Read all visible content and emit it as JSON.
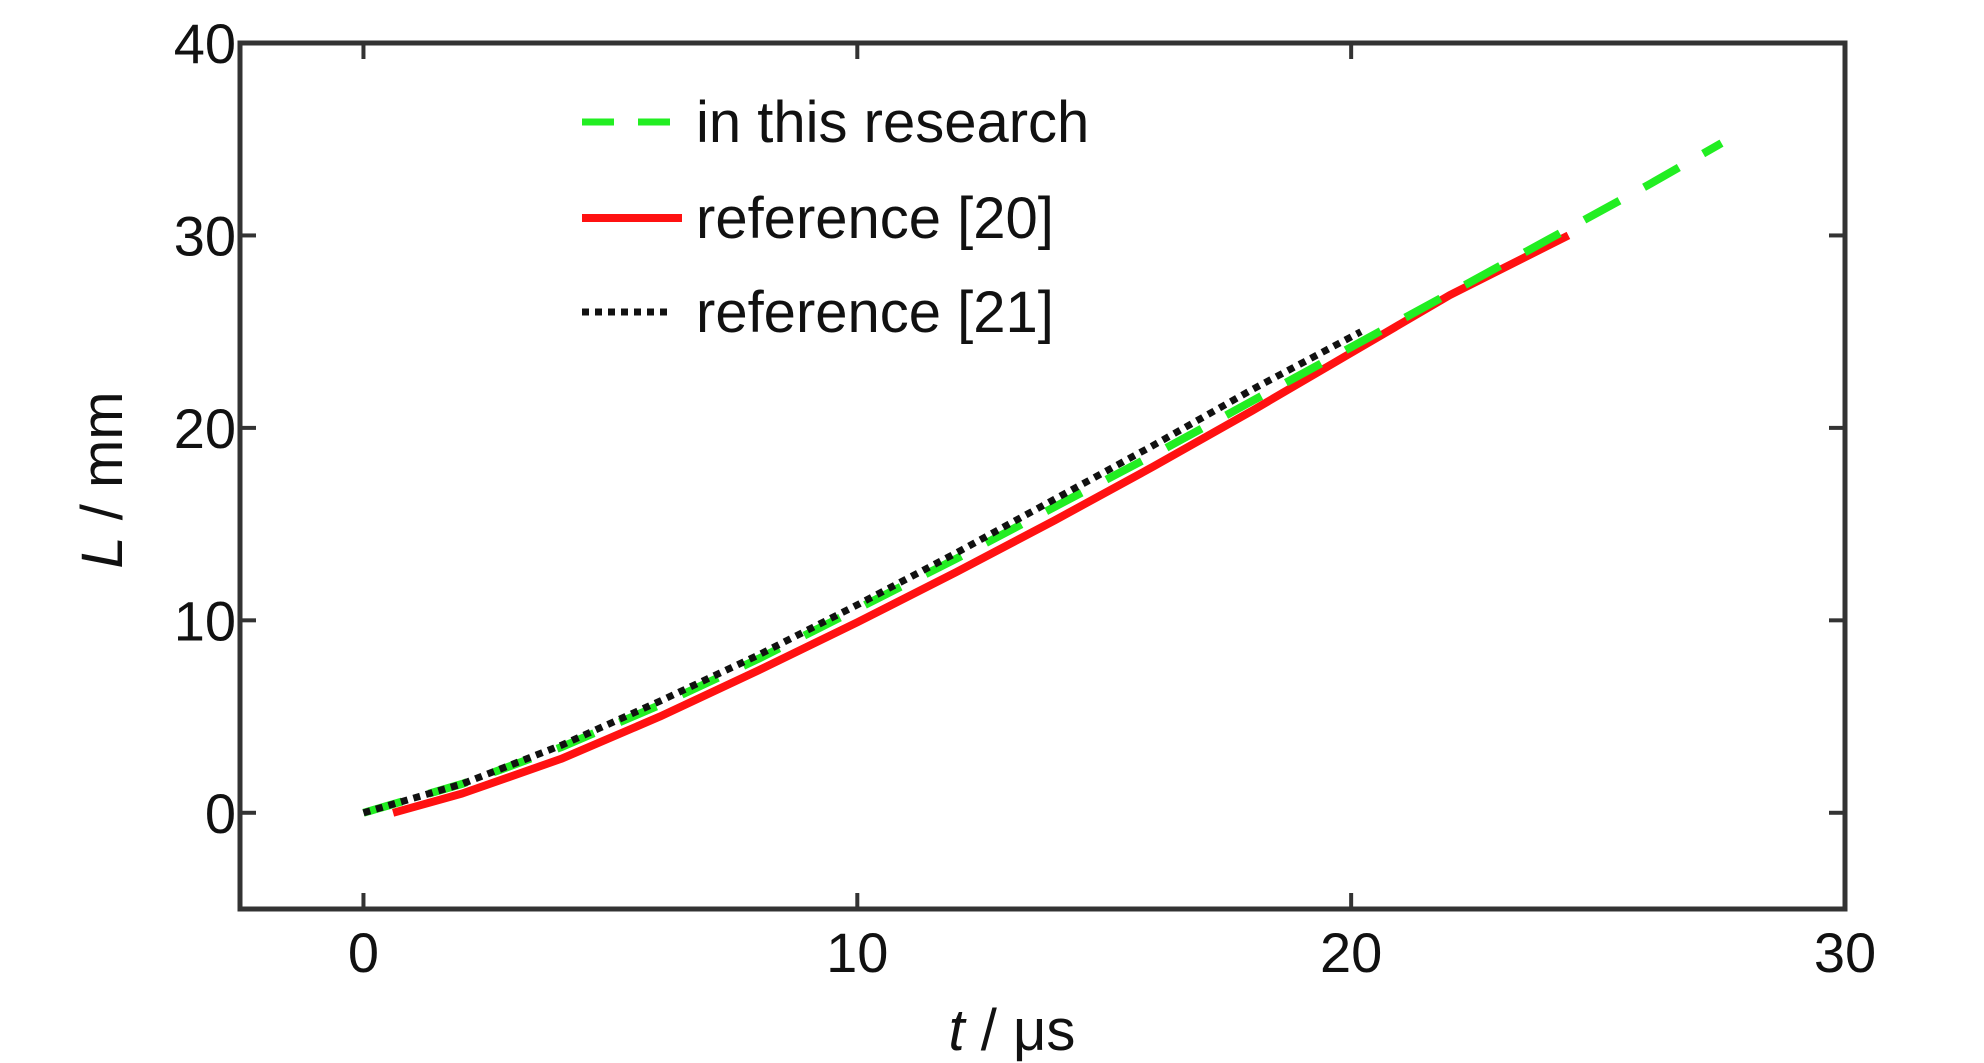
{
  "chart_data": {
    "type": "line",
    "xlabel": {
      "var": "t",
      "unit": " / μs"
    },
    "ylabel": {
      "var": "L",
      "unit": " / mm"
    },
    "xlim": [
      -2.5,
      30
    ],
    "ylim": [
      -5,
      40
    ],
    "xticks": [
      0,
      10,
      20,
      30
    ],
    "yticks": [
      0,
      10,
      20,
      30,
      40
    ],
    "grid": false,
    "legend_position": "top-left",
    "series": [
      {
        "name": "in this research",
        "color": "#22ee22",
        "style": "dashed",
        "x": [
          0,
          2,
          4,
          6,
          8,
          10,
          12,
          14,
          16,
          18,
          20,
          22,
          24,
          26,
          27.5
        ],
        "y": [
          0,
          1.5,
          3.4,
          5.6,
          8.0,
          10.6,
          13.2,
          15.9,
          18.6,
          21.4,
          24.2,
          27.0,
          29.8,
          32.6,
          34.8
        ]
      },
      {
        "name": "reference [20]",
        "color": "#ff1111",
        "style": "solid",
        "x": [
          0.6,
          2,
          4,
          6,
          8,
          10,
          12,
          14,
          16,
          18,
          20,
          22,
          24.4
        ],
        "y": [
          0,
          1.0,
          2.8,
          5.0,
          7.4,
          9.9,
          12.5,
          15.2,
          18.0,
          20.9,
          23.9,
          26.9,
          30.0
        ]
      },
      {
        "name": "reference [21]",
        "color": "#111111",
        "style": "dotted",
        "x": [
          0,
          2,
          4,
          6,
          8,
          10,
          12,
          14,
          16,
          18,
          20.2
        ],
        "y": [
          0,
          1.5,
          3.5,
          5.8,
          8.2,
          10.8,
          13.5,
          16.3,
          19.1,
          22.0,
          25.0
        ]
      }
    ]
  }
}
